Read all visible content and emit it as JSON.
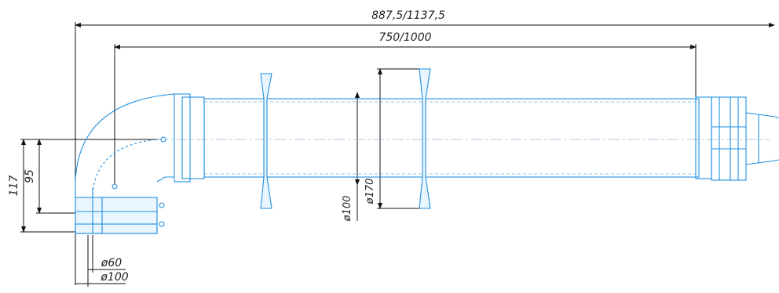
{
  "dimensions": {
    "overall_length": "887,5/1137,5",
    "pipe_length": "750/1000",
    "height_117": "117",
    "height_95": "95",
    "dia_inner_pipe": "ø100",
    "dia_flange": "ø170",
    "dia_inlet_small": "ø60",
    "dia_inlet_large": "ø100"
  },
  "colors": {
    "outline": "#1f8fe0",
    "dimension_lines": "#111111",
    "background": "#ffffff"
  }
}
